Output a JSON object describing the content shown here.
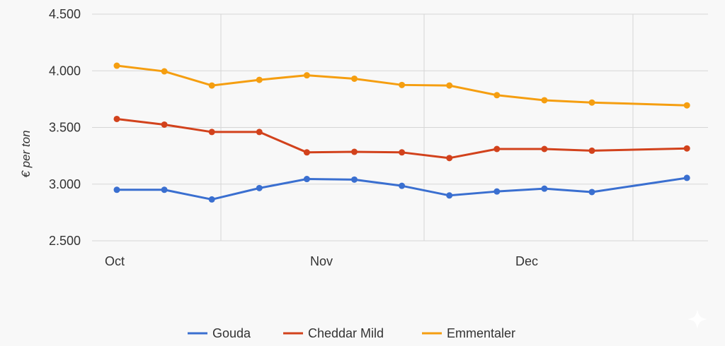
{
  "chart_data": {
    "type": "line",
    "ylabel": "€ per ton",
    "xlabel": "",
    "title": "",
    "y_ticks": [
      "4.500",
      "4.000",
      "3.500",
      "3.000",
      "2.500"
    ],
    "y_tick_values": [
      4500,
      4000,
      3500,
      3000,
      2500
    ],
    "ylim": [
      2500,
      4500
    ],
    "x_tick_labels": [
      {
        "label": "Oct",
        "index": 0
      },
      {
        "label": "Nov",
        "index": 4.5
      },
      {
        "label": "Dec",
        "index": 8.8
      }
    ],
    "x_count": 13,
    "grid": {
      "horizontal": true,
      "vertical": true
    },
    "legend_position": "bottom",
    "series": [
      {
        "name": "Gouda",
        "color": "#3a6fd0",
        "values": [
          2950,
          2950,
          2865,
          2965,
          3045,
          3040,
          2985,
          2900,
          2935,
          2960,
          2930,
          null,
          3055
        ]
      },
      {
        "name": "Cheddar Mild",
        "color": "#d2421c",
        "values": [
          3575,
          3525,
          3460,
          3460,
          3280,
          3285,
          3280,
          3230,
          3310,
          3310,
          3295,
          null,
          3315
        ]
      },
      {
        "name": "Emmentaler",
        "color": "#f59e10",
        "values": [
          4045,
          3995,
          3870,
          3920,
          3960,
          3930,
          3875,
          3870,
          3785,
          3740,
          3720,
          null,
          3695
        ]
      }
    ]
  }
}
